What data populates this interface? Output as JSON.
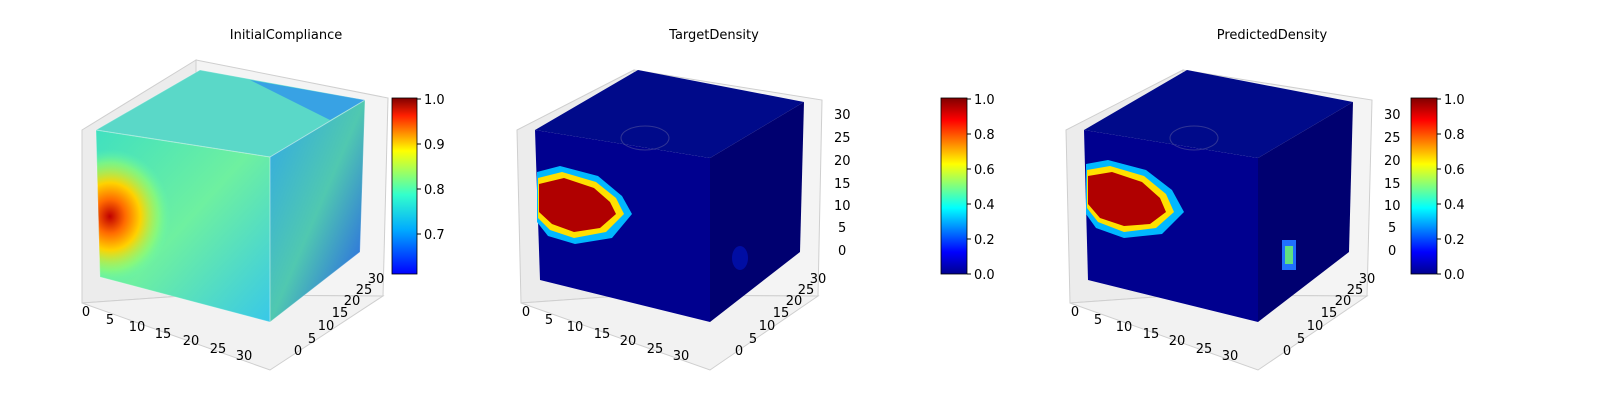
{
  "chart_data": [
    {
      "type": "heatmap",
      "title": "InitialCompliance",
      "grid": true,
      "axes": {
        "x_ticks": [
          "0",
          "5",
          "10",
          "15",
          "20",
          "25",
          "30"
        ],
        "y_ticks": [
          "0",
          "5",
          "10",
          "15",
          "20",
          "25",
          "30"
        ],
        "z_ticks": []
      },
      "colorbar": {
        "range": [
          0.62,
          1.0
        ],
        "ticks": [
          "0.7",
          "0.8",
          "0.9",
          "1.0"
        ],
        "tick_values": [
          0.7,
          0.8,
          0.9,
          1.0
        ],
        "colormap": "jet"
      },
      "field": {
        "base": 0.79,
        "hotspot_value": 0.98,
        "hotspot_location": "left face, mid height",
        "top_face": 0.77,
        "right_face": 0.72,
        "right_face_corner": 0.64
      }
    },
    {
      "type": "heatmap",
      "title": "TargetDensity",
      "grid": true,
      "axes": {
        "x_ticks": [
          "0",
          "5",
          "10",
          "15",
          "20",
          "25",
          "30"
        ],
        "y_ticks": [
          "0",
          "5",
          "10",
          "15",
          "20",
          "25",
          "30"
        ],
        "z_ticks": [
          "0",
          "5",
          "10",
          "15",
          "20",
          "25",
          "30"
        ]
      },
      "colorbar": {
        "range": [
          0.0,
          1.0
        ],
        "ticks": [
          "0.0",
          "0.2",
          "0.4",
          "0.6",
          "0.8",
          "1.0"
        ],
        "tick_values": [
          0.0,
          0.2,
          0.4,
          0.6,
          0.8,
          1.0
        ],
        "colormap": "jet"
      },
      "field": {
        "base": 0.04,
        "blob_value": 0.95,
        "blob_location": "front face, left side, upper-middle height",
        "right_spot_value": 0.12
      }
    },
    {
      "type": "heatmap",
      "title": "PredictedDensity",
      "grid": true,
      "axes": {
        "x_ticks": [
          "0",
          "5",
          "10",
          "15",
          "20",
          "25",
          "30"
        ],
        "y_ticks": [
          "0",
          "5",
          "10",
          "15",
          "20",
          "25",
          "30"
        ],
        "z_ticks": [
          "0",
          "5",
          "10",
          "15",
          "20",
          "25",
          "30"
        ]
      },
      "colorbar": {
        "range": [
          0.0,
          1.0
        ],
        "ticks": [
          "0.0",
          "0.2",
          "0.4",
          "0.6",
          "0.8",
          "1.0"
        ],
        "tick_values": [
          0.0,
          0.2,
          0.4,
          0.6,
          0.8,
          1.0
        ],
        "colormap": "jet"
      },
      "field": {
        "base": 0.04,
        "blob_value": 0.95,
        "blob_location": "front face, left side, upper-middle height",
        "right_spot_value": 0.45
      }
    }
  ]
}
